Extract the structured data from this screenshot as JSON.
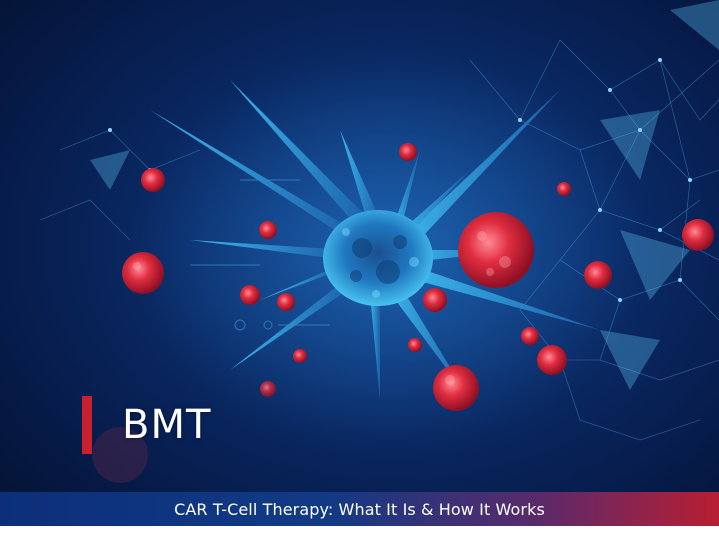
{
  "hero": {
    "category": "BMT",
    "caption": "CAR T-Cell Therapy: What It Is & How It Works"
  },
  "colors": {
    "accent_red": "#c8202f",
    "navy": "#0a2a66",
    "cell_blue": "#2fa8e0",
    "cancer_red": "#e0283c"
  }
}
